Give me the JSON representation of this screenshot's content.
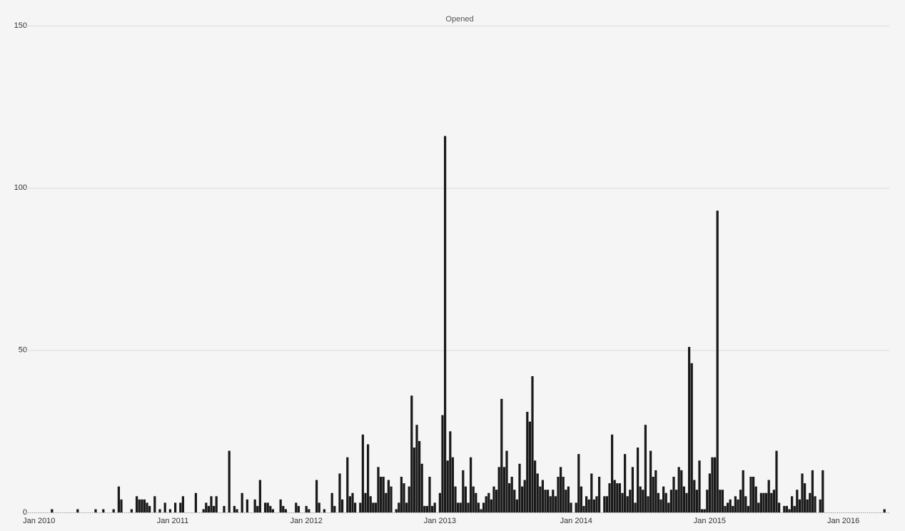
{
  "chart_data": {
    "type": "bar",
    "title": "Opened",
    "color": "#1a1a1a",
    "grid": true,
    "ylim": [
      0,
      150
    ],
    "yticks": [
      0,
      50,
      100,
      150
    ],
    "categories": [
      "Jan 2010",
      null,
      null,
      null,
      null,
      null,
      null,
      null,
      null,
      null,
      null,
      null,
      null,
      null,
      null,
      null,
      null,
      null,
      null,
      null,
      null,
      null,
      null,
      null,
      null,
      null,
      null,
      null,
      null,
      null,
      null,
      null,
      null,
      null,
      null,
      null,
      null,
      null,
      null,
      null,
      null,
      null,
      null,
      null,
      null,
      null,
      null,
      null,
      null,
      null,
      null,
      null,
      "Jan 2011",
      null,
      null,
      null,
      null,
      null,
      null,
      null,
      null,
      null,
      null,
      null,
      null,
      null,
      null,
      null,
      null,
      null,
      null,
      null,
      null,
      null,
      null,
      null,
      null,
      null,
      null,
      null,
      null,
      null,
      null,
      null,
      null,
      null,
      null,
      null,
      null,
      null,
      null,
      null,
      null,
      null,
      null,
      null,
      null,
      null,
      null,
      null,
      null,
      null,
      null,
      null,
      "Jan 2012",
      null,
      null,
      null,
      null,
      null,
      null,
      null,
      null,
      null,
      null,
      null,
      null,
      null,
      null,
      null,
      null,
      null,
      null,
      null,
      null,
      null,
      null,
      null,
      null,
      null,
      null,
      null,
      null,
      null,
      null,
      null,
      null,
      null,
      null,
      null,
      null,
      null,
      null,
      null,
      null,
      null,
      null,
      null,
      null,
      null,
      null,
      null,
      null,
      null,
      null,
      null,
      "Jan 2013",
      null,
      null,
      null,
      null,
      null,
      null,
      null,
      null,
      null,
      null,
      null,
      null,
      null,
      null,
      null,
      null,
      null,
      null,
      null,
      null,
      null,
      null,
      null,
      null,
      null,
      null,
      null,
      null,
      null,
      null,
      null,
      null,
      null,
      null,
      null,
      null,
      null,
      null,
      null,
      null,
      null,
      null,
      null,
      null,
      null,
      null,
      null,
      null,
      null,
      null,
      null,
      null,
      "Jan 2014",
      null,
      null,
      null,
      null,
      null,
      null,
      null,
      null,
      null,
      null,
      null,
      null,
      null,
      null,
      null,
      null,
      null,
      null,
      null,
      null,
      null,
      null,
      null,
      null,
      null,
      null,
      null,
      null,
      null,
      null,
      null,
      null,
      null,
      null,
      null,
      null,
      null,
      null,
      null,
      null,
      null,
      null,
      null,
      null,
      null,
      null,
      null,
      null,
      null,
      null,
      null,
      "Jan 2015",
      null,
      null,
      null,
      null,
      null,
      null,
      null,
      null,
      null,
      null,
      null,
      null,
      null,
      null,
      null,
      null,
      null,
      null,
      null,
      null,
      null,
      null,
      null,
      null,
      null,
      null,
      null,
      null,
      null,
      null,
      null,
      null,
      null,
      null,
      null,
      null,
      null,
      null,
      null,
      null,
      null,
      null,
      null,
      null,
      null,
      null,
      null,
      null,
      null,
      null,
      null,
      "Jan 2016",
      null,
      null,
      null,
      null,
      null,
      null,
      null,
      null,
      null,
      null,
      null,
      null,
      null,
      null,
      null,
      null
    ],
    "values": [
      0,
      0,
      0,
      0,
      0,
      1,
      0,
      0,
      0,
      0,
      0,
      0,
      0,
      0,
      0,
      1,
      0,
      0,
      0,
      0,
      0,
      0,
      1,
      0,
      0,
      1,
      0,
      0,
      0,
      1,
      0,
      8,
      4,
      0,
      0,
      0,
      1,
      0,
      5,
      4,
      4,
      4,
      3,
      2,
      0,
      5,
      0,
      1,
      0,
      3,
      0,
      1,
      0,
      3,
      0,
      3,
      5,
      0,
      0,
      0,
      0,
      6,
      0,
      0,
      1,
      3,
      2,
      5,
      2,
      5,
      0,
      0,
      2,
      0,
      19,
      0,
      2,
      1,
      0,
      6,
      0,
      4,
      0,
      0,
      4,
      2,
      10,
      0,
      3,
      3,
      2,
      1,
      0,
      0,
      4,
      2,
      1,
      0,
      0,
      0,
      3,
      2,
      0,
      0,
      2,
      1,
      0,
      0,
      10,
      3,
      0,
      1,
      0,
      0,
      6,
      2,
      0,
      12,
      4,
      0,
      17,
      5,
      6,
      3,
      0,
      3,
      24,
      6,
      21,
      5,
      3,
      3,
      14,
      11,
      11,
      6,
      10,
      8,
      0,
      1,
      3,
      11,
      9,
      3,
      8,
      36,
      20,
      27,
      22,
      15,
      2,
      2,
      11,
      2,
      3,
      0,
      6,
      30,
      116,
      16,
      25,
      17,
      8,
      3,
      3,
      13,
      8,
      3,
      17,
      8,
      6,
      3,
      1,
      3,
      5,
      6,
      4,
      8,
      7,
      14,
      35,
      14,
      19,
      9,
      11,
      7,
      4,
      15,
      8,
      10,
      31,
      28,
      42,
      16,
      12,
      8,
      10,
      7,
      7,
      5,
      7,
      5,
      11,
      14,
      11,
      7,
      8,
      3,
      0,
      3,
      18,
      8,
      2,
      5,
      4,
      12,
      4,
      5,
      11,
      0,
      5,
      5,
      9,
      24,
      10,
      9,
      9,
      6,
      18,
      5,
      7,
      14,
      3,
      20,
      8,
      7,
      27,
      5,
      19,
      11,
      13,
      6,
      4,
      8,
      6,
      3,
      7,
      11,
      7,
      14,
      13,
      8,
      6,
      51,
      46,
      10,
      7,
      16,
      1,
      1,
      7,
      12,
      17,
      17,
      93,
      7,
      7,
      2,
      3,
      4,
      2,
      5,
      4,
      7,
      13,
      5,
      2,
      11,
      11,
      8,
      3,
      6,
      6,
      6,
      10,
      6,
      7,
      19,
      3,
      0,
      2,
      2,
      1,
      5,
      2,
      7,
      4,
      12,
      9,
      4,
      6,
      13,
      5,
      0,
      4,
      13,
      0,
      0,
      0,
      0,
      0,
      0,
      0,
      0,
      0,
      0,
      0,
      0,
      0,
      0,
      0,
      0,
      0,
      0,
      0,
      0,
      0,
      0,
      0,
      1
    ]
  }
}
